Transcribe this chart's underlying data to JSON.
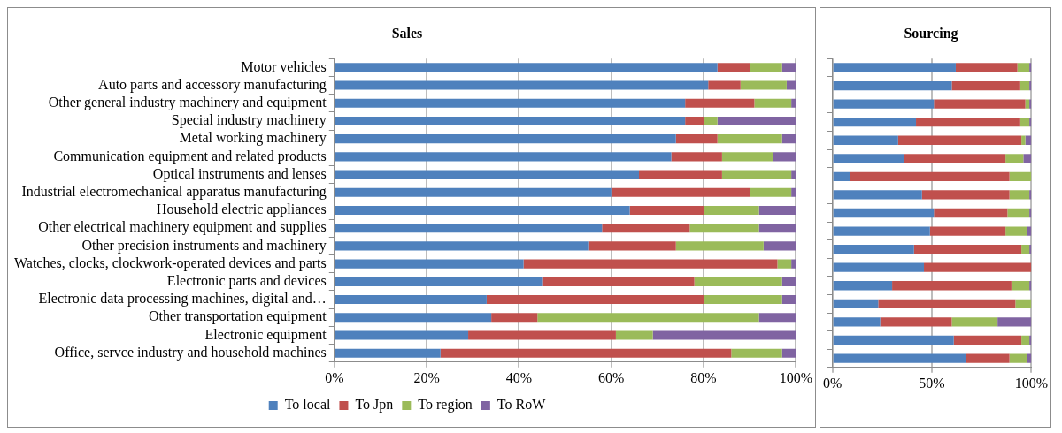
{
  "chart_data": [
    {
      "type": "bar",
      "title": "Sales",
      "orientation": "horizontal",
      "stacked": true,
      "grid": "x",
      "legend": "bottom",
      "categories": [
        "Motor vehicles",
        "Auto parts and accessory manufacturing",
        "Other general industry machinery and equipment",
        "Special industry machinery",
        "Metal working machinery",
        "Communication equipment and related products",
        "Optical instruments and lenses",
        "Industrial electromechanical apparatus manufacturing",
        "Household electric appliances",
        "Other electrical machinery equipment and supplies",
        "Other precision instruments and machinery",
        "Watches, clocks, clockwork-operated devices and parts",
        "Electronic parts and devices",
        "Electronic data processing machines, digital and…",
        "Other transportation equipment",
        "Electronic equipment",
        "Office, servce industry and household machines"
      ],
      "xlim": [
        0,
        100
      ],
      "xticks": [
        {
          "value": 0,
          "label": "0%"
        },
        {
          "value": 20,
          "label": "20%"
        },
        {
          "value": 40,
          "label": "40%"
        },
        {
          "value": 60,
          "label": "60%"
        },
        {
          "value": 80,
          "label": "80%"
        },
        {
          "value": 100,
          "label": "100%"
        }
      ],
      "series": [
        {
          "name": "To local",
          "color": "#4f81bd",
          "values": [
            83,
            81,
            76,
            76,
            74,
            73,
            66,
            60,
            64,
            58,
            55,
            41,
            45,
            33,
            34,
            29,
            23
          ]
        },
        {
          "name": "To Jpn",
          "color": "#c0504d",
          "values": [
            7,
            7,
            15,
            4,
            9,
            11,
            18,
            30,
            16,
            19,
            19,
            55,
            33,
            47,
            10,
            32,
            63
          ]
        },
        {
          "name": "To region",
          "color": "#9bbb59",
          "values": [
            7,
            10,
            8,
            3,
            14,
            11,
            15,
            9,
            12,
            15,
            19,
            3,
            19,
            17,
            48,
            8,
            11
          ]
        },
        {
          "name": "To RoW",
          "color": "#8064a2",
          "values": [
            3,
            2,
            1,
            17,
            3,
            5,
            1,
            1,
            8,
            8,
            7,
            1,
            3,
            3,
            8,
            31,
            3
          ]
        }
      ]
    },
    {
      "type": "bar",
      "title": "Sourcing",
      "orientation": "horizontal",
      "stacked": true,
      "grid": "x",
      "tick_labels": "x",
      "categories": [
        null,
        null,
        null,
        null,
        null,
        null,
        null,
        null,
        null,
        null,
        null,
        null,
        null,
        null,
        null,
        null,
        null
      ],
      "xlim": [
        0,
        100
      ],
      "xticks": [
        {
          "value": 0,
          "label": "0%"
        },
        {
          "value": 50,
          "label": "50%"
        },
        {
          "value": 100,
          "label": "100%"
        }
      ],
      "series": [
        {
          "color": "#4f81bd",
          "values": [
            62,
            60,
            51,
            42,
            33,
            36,
            9,
            45,
            51,
            49,
            41,
            46,
            30,
            23,
            24,
            61,
            67
          ]
        },
        {
          "color": "#c0504d",
          "values": [
            31,
            34,
            46,
            52,
            62,
            51,
            80,
            44,
            37,
            38,
            54,
            54,
            60,
            69,
            36,
            34,
            22
          ]
        },
        {
          "color": "#9bbb59",
          "values": [
            6,
            5,
            2,
            5,
            2,
            9,
            11,
            10,
            11,
            11,
            4,
            0,
            9,
            8,
            23,
            4,
            9
          ]
        },
        {
          "color": "#8064a2",
          "values": [
            1,
            1,
            1,
            1,
            3,
            4,
            0,
            1,
            1,
            2,
            1,
            0,
            1,
            0,
            17,
            1,
            2
          ]
        }
      ]
    }
  ]
}
